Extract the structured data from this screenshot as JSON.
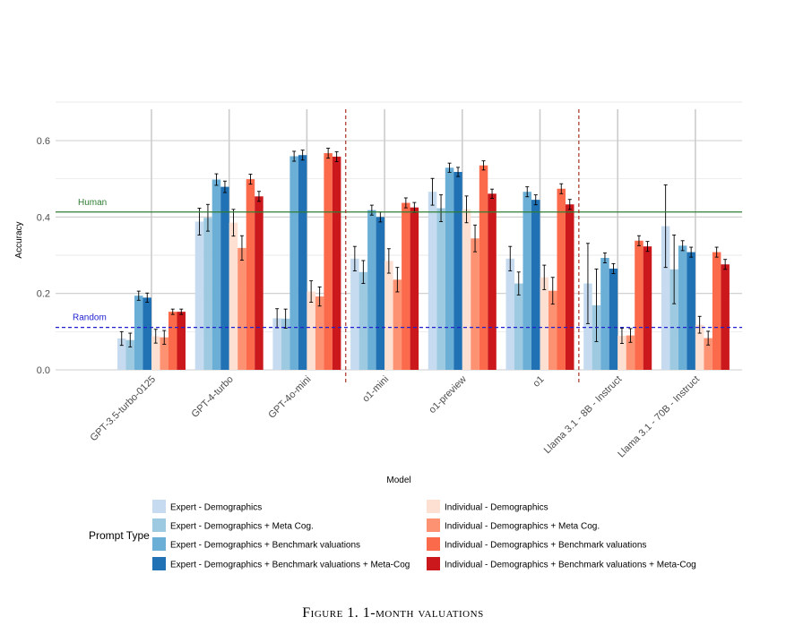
{
  "caption": "Figure 1. 1-month valuations",
  "chart_data": {
    "type": "bar",
    "xlabel": "Model",
    "ylabel": "Accuracy",
    "ylim": [
      0,
      0.68
    ],
    "yticks": [
      0.0,
      0.2,
      0.4,
      0.6
    ],
    "ytick_labels": [
      "0.0",
      "0.2",
      "0.4",
      "0.6"
    ],
    "grid": true,
    "legend_title": "Prompt Type",
    "legend_position": "bottom",
    "categories": [
      "GPT-3.5-turbo-0125",
      "GPT-4-turbo",
      "GPT-4o-mini",
      "o1-mini",
      "o1-preview",
      "o1",
      "Llama 3.1 - 8B - Instruct",
      "Llama 3.1 - 70B - Instruct"
    ],
    "reference_lines": [
      {
        "label": "Human",
        "value": 0.413,
        "color": "#2e7d32",
        "style": "solid"
      },
      {
        "label": "Random",
        "value": 0.111,
        "color": "#1f1fd0",
        "style": "dashed"
      }
    ],
    "separators_after": [
      "GPT-4o-mini",
      "o1"
    ],
    "separator_color": "#a93226",
    "series": [
      {
        "name": "Expert - Demographics",
        "color": "#c6dbef",
        "values": [
          0.082,
          0.388,
          0.135,
          0.291,
          0.466,
          0.291,
          0.226,
          0.376
        ],
        "errors": [
          0.018,
          0.035,
          0.025,
          0.032,
          0.035,
          0.032,
          0.105,
          0.108
        ]
      },
      {
        "name": "Expert - Demographics + Meta Cog.",
        "color": "#9ecae1",
        "values": [
          0.078,
          0.398,
          0.134,
          0.256,
          0.423,
          0.226,
          0.169,
          0.263
        ],
        "errors": [
          0.018,
          0.035,
          0.025,
          0.03,
          0.035,
          0.03,
          0.095,
          0.09
        ]
      },
      {
        "name": "Expert - Demographics + Benchmark valuations",
        "color": "#6baed6",
        "values": [
          0.194,
          0.498,
          0.559,
          0.418,
          0.529,
          0.466,
          0.293,
          0.325
        ],
        "errors": [
          0.012,
          0.015,
          0.013,
          0.013,
          0.012,
          0.013,
          0.013,
          0.013
        ]
      },
      {
        "name": "Expert - Demographics + Benchmark valuations + Meta-Cog",
        "color": "#2171b5",
        "values": [
          0.189,
          0.479,
          0.562,
          0.4,
          0.518,
          0.445,
          0.265,
          0.308
        ],
        "errors": [
          0.012,
          0.015,
          0.013,
          0.013,
          0.012,
          0.013,
          0.013,
          0.013
        ]
      },
      {
        "name": "Individual - Demographics",
        "color": "#fee0d2",
        "values": [
          0.088,
          0.385,
          0.205,
          0.285,
          0.42,
          0.242,
          0.089,
          0.118
        ],
        "errors": [
          0.018,
          0.035,
          0.028,
          0.032,
          0.035,
          0.032,
          0.02,
          0.022
        ]
      },
      {
        "name": "Individual - Demographics + Meta Cog.",
        "color": "#fc9272",
        "values": [
          0.085,
          0.319,
          0.192,
          0.236,
          0.344,
          0.207,
          0.09,
          0.083
        ],
        "errors": [
          0.018,
          0.032,
          0.025,
          0.032,
          0.035,
          0.035,
          0.018,
          0.018
        ]
      },
      {
        "name": "Individual - Demographics + Benchmark valuations",
        "color": "#fb6a4a",
        "values": [
          0.152,
          0.499,
          0.567,
          0.437,
          0.535,
          0.474,
          0.338,
          0.308
        ],
        "errors": [
          0.007,
          0.013,
          0.013,
          0.013,
          0.012,
          0.013,
          0.013,
          0.013
        ]
      },
      {
        "name": "Individual - Demographics + Benchmark valuations + Meta-Cog",
        "color": "#cb181d",
        "values": [
          0.152,
          0.454,
          0.558,
          0.425,
          0.461,
          0.433,
          0.323,
          0.276
        ],
        "errors": [
          0.007,
          0.013,
          0.013,
          0.013,
          0.012,
          0.013,
          0.013,
          0.013
        ]
      }
    ]
  }
}
